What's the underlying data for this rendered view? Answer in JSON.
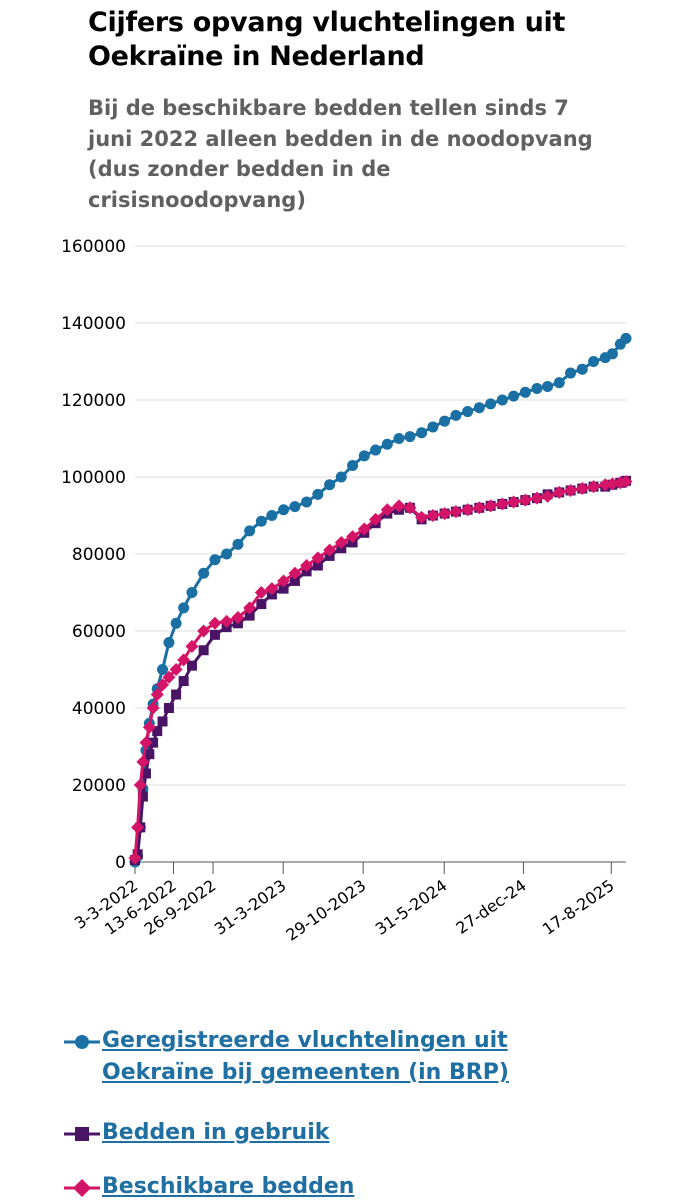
{
  "title": "Cijfers opvang vluchtelingen uit Oekraïne in Nederland",
  "subtitle": "Bij de beschikbare bedden tellen sinds 7 juni 2022 alleen bedden in de noodopvang (dus zonder bedden in de crisisnoodopvang)",
  "chart_data": {
    "type": "line",
    "title": "Cijfers opvang vluchtelingen uit Oekraïne in Nederland",
    "subtitle": "Bij de beschikbare bedden tellen sinds 7 juni 2022 alleen bedden in de noodopvang (dus zonder bedden in de crisisnoodopvang)",
    "xlabel": "",
    "ylabel": "",
    "ylim": [
      0,
      160000
    ],
    "y_ticks": [
      0,
      20000,
      40000,
      60000,
      80000,
      100000,
      120000,
      140000,
      160000
    ],
    "x_ticks": [
      "3-3-2022",
      "13-6-2022",
      "26-9-2022",
      "31-3-2023",
      "29-10-2023",
      "31-5-2024",
      "27-dec-24",
      "17-8-2025"
    ],
    "grid": true,
    "legend_position": "bottom",
    "series": [
      {
        "name": "Geregistreerde vluchtelingen uit Oekraïne bij gemeenten (in BRP)",
        "color": "#1a6fa3",
        "marker": "circle",
        "x": [
          "2022-03-03",
          "2022-03-10",
          "2022-03-17",
          "2022-03-24",
          "2022-04-01",
          "2022-04-10",
          "2022-04-20",
          "2022-05-01",
          "2022-05-15",
          "2022-06-01",
          "2022-06-20",
          "2022-07-10",
          "2022-08-01",
          "2022-09-01",
          "2022-10-01",
          "2022-11-01",
          "2022-12-01",
          "2023-01-01",
          "2023-02-01",
          "2023-03-01",
          "2023-04-01",
          "2023-05-01",
          "2023-06-01",
          "2023-07-01",
          "2023-08-01",
          "2023-09-01",
          "2023-10-01",
          "2023-11-01",
          "2023-12-01",
          "2024-01-01",
          "2024-02-01",
          "2024-03-01",
          "2024-04-01",
          "2024-05-01",
          "2024-06-01",
          "2024-07-01",
          "2024-08-01",
          "2024-09-01",
          "2024-10-01",
          "2024-11-01",
          "2024-12-01",
          "2025-01-01",
          "2025-02-01",
          "2025-03-01",
          "2025-04-01",
          "2025-05-01",
          "2025-06-01",
          "2025-07-01",
          "2025-08-01",
          "2025-08-20",
          "2025-09-10",
          "2025-09-25"
        ],
        "values": [
          0,
          1500,
          9000,
          19000,
          29000,
          36000,
          41000,
          45000,
          50000,
          57000,
          62000,
          66000,
          70000,
          75000,
          78500,
          80000,
          82500,
          86000,
          88500,
          90000,
          91500,
          92300,
          93500,
          95500,
          98000,
          100000,
          103000,
          105500,
          107000,
          108500,
          110000,
          110500,
          111500,
          113000,
          114500,
          116000,
          117000,
          118000,
          119000,
          120000,
          121000,
          122000,
          123000,
          123500,
          124500,
          127000,
          128000,
          130000,
          131000,
          132000,
          134500,
          136000
        ]
      },
      {
        "name": "Bedden in gebruik",
        "color": "#4a1466",
        "marker": "square",
        "x": [
          "2022-03-03",
          "2022-03-10",
          "2022-03-17",
          "2022-03-24",
          "2022-04-01",
          "2022-04-10",
          "2022-04-20",
          "2022-05-01",
          "2022-05-15",
          "2022-06-01",
          "2022-06-20",
          "2022-07-10",
          "2022-08-01",
          "2022-09-01",
          "2022-10-01",
          "2022-11-01",
          "2022-12-01",
          "2023-01-01",
          "2023-02-01",
          "2023-03-01",
          "2023-04-01",
          "2023-05-01",
          "2023-06-01",
          "2023-07-01",
          "2023-08-01",
          "2023-09-01",
          "2023-10-01",
          "2023-11-01",
          "2023-12-01",
          "2024-01-01",
          "2024-02-01",
          "2024-03-01",
          "2024-04-01",
          "2024-05-01",
          "2024-06-01",
          "2024-07-01",
          "2024-08-01",
          "2024-09-01",
          "2024-10-01",
          "2024-11-01",
          "2024-12-01",
          "2025-01-01",
          "2025-02-01",
          "2025-03-01",
          "2025-04-01",
          "2025-05-01",
          "2025-06-01",
          "2025-07-01",
          "2025-08-01",
          "2025-08-20",
          "2025-09-10",
          "2025-09-25"
        ],
        "values": [
          500,
          2000,
          9000,
          17000,
          23000,
          28000,
          31000,
          34000,
          36500,
          40000,
          43500,
          47000,
          51000,
          55000,
          59000,
          61000,
          62000,
          64000,
          67000,
          69500,
          71000,
          73000,
          75500,
          77000,
          79500,
          81500,
          83000,
          85500,
          88000,
          90500,
          91500,
          92000,
          89000,
          90000,
          90500,
          91000,
          91500,
          92000,
          92500,
          93000,
          93500,
          94000,
          94500,
          95500,
          96000,
          96500,
          97000,
          97500,
          97500,
          98000,
          98500,
          99000
        ]
      },
      {
        "name": "Beschikbare bedden",
        "color": "#d41467",
        "marker": "diamond",
        "x": [
          "2022-03-03",
          "2022-03-10",
          "2022-03-17",
          "2022-03-24",
          "2022-04-01",
          "2022-04-10",
          "2022-04-20",
          "2022-05-01",
          "2022-05-15",
          "2022-06-01",
          "2022-06-20",
          "2022-07-10",
          "2022-08-01",
          "2022-09-01",
          "2022-10-01",
          "2022-11-01",
          "2022-12-01",
          "2023-01-01",
          "2023-02-01",
          "2023-03-01",
          "2023-04-01",
          "2023-05-01",
          "2023-06-01",
          "2023-07-01",
          "2023-08-01",
          "2023-09-01",
          "2023-10-01",
          "2023-11-01",
          "2023-12-01",
          "2024-01-01",
          "2024-02-01",
          "2024-03-01",
          "2024-04-01",
          "2024-05-01",
          "2024-06-01",
          "2024-07-01",
          "2024-08-01",
          "2024-09-01",
          "2024-10-01",
          "2024-11-01",
          "2024-12-01",
          "2025-01-01",
          "2025-02-01",
          "2025-03-01",
          "2025-04-01",
          "2025-05-01",
          "2025-06-01",
          "2025-07-01",
          "2025-08-01",
          "2025-08-20",
          "2025-09-10",
          "2025-09-25"
        ],
        "values": [
          1000,
          9000,
          20000,
          26000,
          31000,
          35000,
          40000,
          43500,
          46000,
          48000,
          50000,
          52500,
          56000,
          60000,
          62000,
          62500,
          63500,
          66000,
          70000,
          71000,
          73000,
          75000,
          77000,
          79000,
          81000,
          83000,
          84500,
          86500,
          89000,
          91500,
          92500,
          92000,
          89500,
          90000,
          90500,
          91000,
          91500,
          92000,
          92500,
          93000,
          93500,
          94000,
          94500,
          95000,
          96000,
          96500,
          97000,
          97500,
          98000,
          98200,
          98500,
          98800
        ]
      }
    ]
  }
}
